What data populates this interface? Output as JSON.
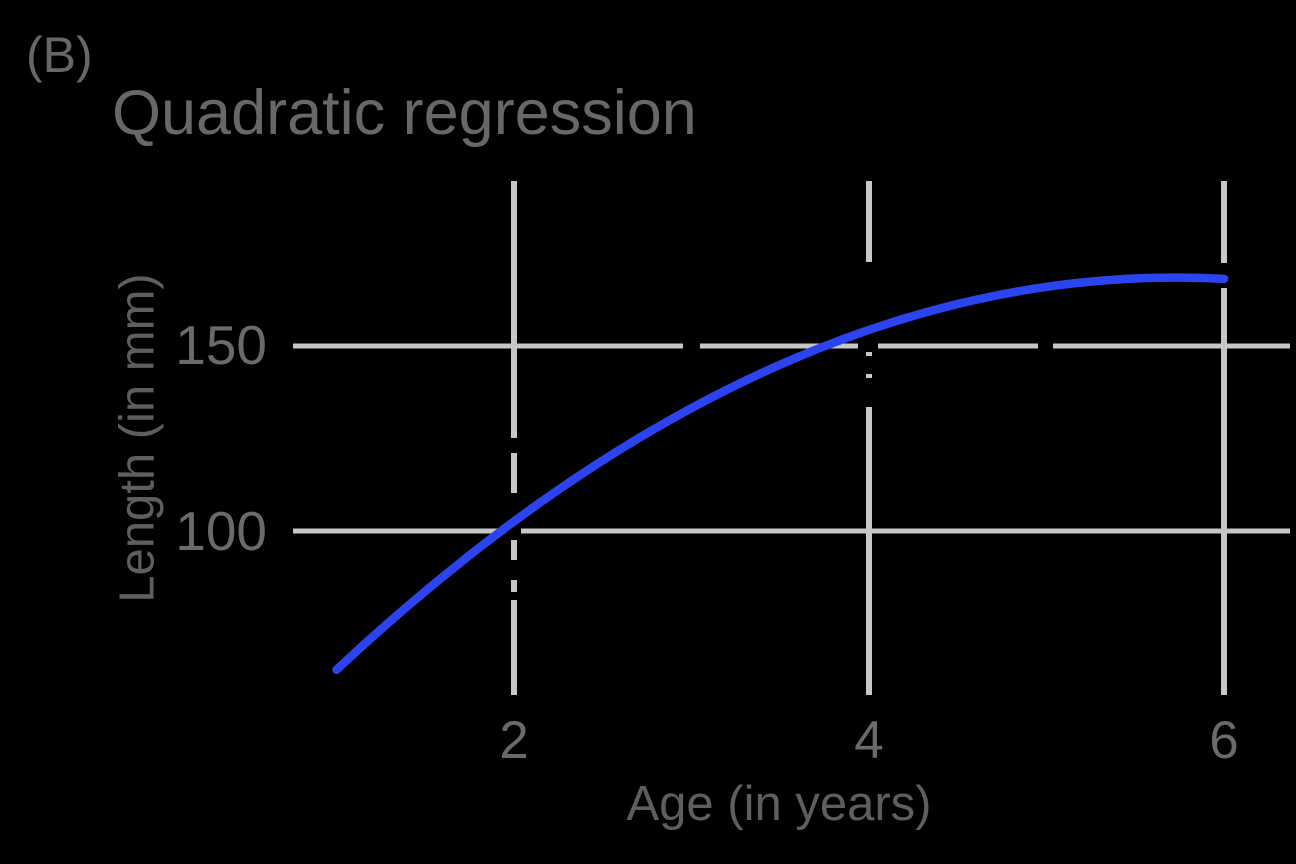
{
  "panel_label": "(B)",
  "chart_data": {
    "type": "line",
    "title": "Quadratic regression",
    "xlabel": "Age (in years)",
    "ylabel": "Length (in mm)",
    "x_ticks": [
      2,
      4,
      6
    ],
    "x_tick_labels": [
      "2",
      "4",
      "6"
    ],
    "y_ticks": [
      100,
      150
    ],
    "y_tick_labels": [
      "100",
      "150"
    ],
    "xlim": [
      0.76,
      6.37
    ],
    "ylim": [
      56,
      194
    ],
    "grid": true,
    "legend": false,
    "series": [
      {
        "name": "quadratic regression curve",
        "style": "smooth curve",
        "color": "#2b44f0",
        "model": "quadratic",
        "coefficients": {
          "intercept": 13.62,
          "linear": 54.05,
          "quadratic": -4.719
        },
        "x_range": [
          1.0,
          6.0
        ],
        "points": [
          [
            1.0,
            62.9
          ],
          [
            1.5,
            84.1
          ],
          [
            2.0,
            102.8
          ],
          [
            2.5,
            119.2
          ],
          [
            3.0,
            133.3
          ],
          [
            3.5,
            145.0
          ],
          [
            4.0,
            154.3
          ],
          [
            4.5,
            161.2
          ],
          [
            5.0,
            165.9
          ],
          [
            5.5,
            168.2
          ],
          [
            6.0,
            168.0
          ]
        ]
      }
    ]
  },
  "colors": {
    "background": "#000000",
    "text": "#676767",
    "grid": "#c7c7c7",
    "curve": "#2b44f0"
  }
}
